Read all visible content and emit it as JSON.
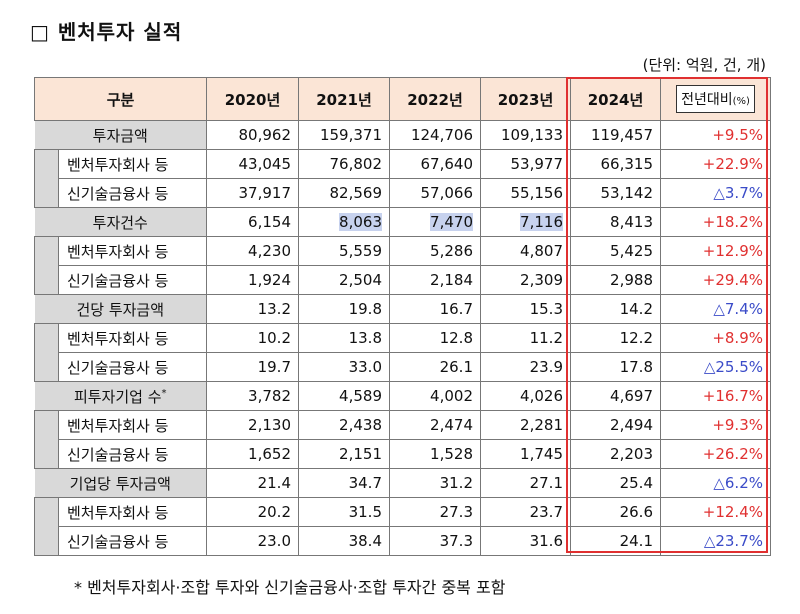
{
  "title": "□ 벤처투자 실적",
  "unit": "(단위: 억원, 건, 개)",
  "header": {
    "category": "구분",
    "years": [
      "2020년",
      "2021년",
      "2022년",
      "2023년",
      "2024년"
    ],
    "yoy_label": "전년대비",
    "yoy_unit": "(%)"
  },
  "groups": [
    {
      "label": "투자금액",
      "values": [
        "80,962",
        "159,371",
        "124,706",
        "109,133",
        "119,457"
      ],
      "yoy": "+9.5%",
      "yoy_dir": "up",
      "subs": [
        {
          "label": "벤처투자회사 등",
          "values": [
            "43,045",
            "76,802",
            "67,640",
            "53,977",
            "66,315"
          ],
          "yoy": "+22.9%",
          "yoy_dir": "up"
        },
        {
          "label": "신기술금융사 등",
          "values": [
            "37,917",
            "82,569",
            "57,066",
            "55,156",
            "53,142"
          ],
          "yoy": "△3.7%",
          "yoy_dir": "down"
        }
      ]
    },
    {
      "label": "투자건수",
      "values": [
        "6,154",
        "8,063",
        "7,470",
        "7,116",
        "8,413"
      ],
      "yoy": "+18.2%",
      "yoy_dir": "up",
      "subs": [
        {
          "label": "벤처투자회사 등",
          "values": [
            "4,230",
            "5,559",
            "5,286",
            "4,807",
            "5,425"
          ],
          "yoy": "+12.9%",
          "yoy_dir": "up"
        },
        {
          "label": "신기술금융사 등",
          "values": [
            "1,924",
            "2,504",
            "2,184",
            "2,309",
            "2,988"
          ],
          "yoy": "+29.4%",
          "yoy_dir": "up"
        }
      ]
    },
    {
      "label": "건당 투자금액",
      "values": [
        "13.2",
        "19.8",
        "16.7",
        "15.3",
        "14.2"
      ],
      "yoy": "△7.4%",
      "yoy_dir": "down",
      "subs": [
        {
          "label": "벤처투자회사 등",
          "values": [
            "10.2",
            "13.8",
            "12.8",
            "11.2",
            "12.2"
          ],
          "yoy": "+8.9%",
          "yoy_dir": "up"
        },
        {
          "label": "신기술금융사 등",
          "values": [
            "19.7",
            "33.0",
            "26.1",
            "23.9",
            "17.8"
          ],
          "yoy": "△25.5%",
          "yoy_dir": "down"
        }
      ]
    },
    {
      "label": "피투자기업 수",
      "note_mark": "*",
      "values": [
        "3,782",
        "4,589",
        "4,002",
        "4,026",
        "4,697"
      ],
      "yoy": "+16.7%",
      "yoy_dir": "up",
      "subs": [
        {
          "label": "벤처투자회사 등",
          "values": [
            "2,130",
            "2,438",
            "2,474",
            "2,281",
            "2,494"
          ],
          "yoy": "+9.3%",
          "yoy_dir": "up"
        },
        {
          "label": "신기술금융사 등",
          "values": [
            "1,652",
            "2,151",
            "1,528",
            "1,745",
            "2,203"
          ],
          "yoy": "+26.2%",
          "yoy_dir": "up"
        }
      ]
    },
    {
      "label": "기업당 투자금액",
      "values": [
        "21.4",
        "34.7",
        "31.2",
        "27.1",
        "25.4"
      ],
      "yoy": "△6.2%",
      "yoy_dir": "down",
      "subs": [
        {
          "label": "벤처투자회사 등",
          "values": [
            "20.2",
            "31.5",
            "27.3",
            "23.7",
            "26.6"
          ],
          "yoy": "+12.4%",
          "yoy_dir": "up"
        },
        {
          "label": "신기술금융사 등",
          "values": [
            "23.0",
            "38.4",
            "37.3",
            "31.6",
            "24.1"
          ],
          "yoy": "△23.7%",
          "yoy_dir": "down"
        }
      ]
    }
  ],
  "footnote": "* 벤처투자회사·조합 투자와 신기술금융사·조합 투자간 중복 포함",
  "colors": {
    "header_bg": "#fbe5d6",
    "group_bg": "#d9d9d9",
    "increase": "#e03030",
    "decrease": "#3a4bc8",
    "highlight_box": "#e03030"
  }
}
